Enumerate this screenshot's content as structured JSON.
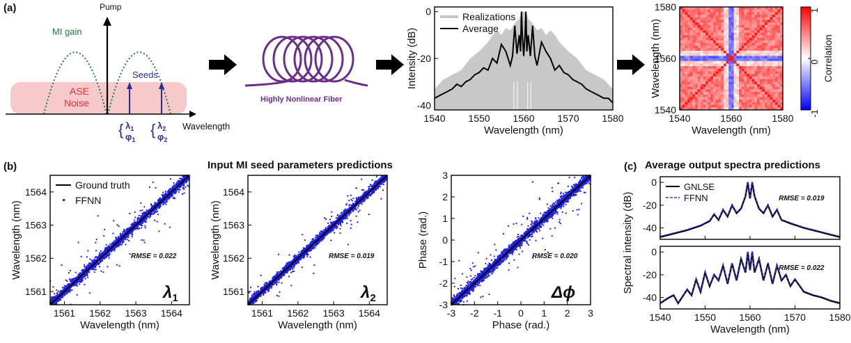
{
  "panel_labels": {
    "a": "(a)",
    "b": "(b)",
    "c": "(c)"
  },
  "schematic": {
    "pump": "Pump",
    "mi_gain": "MI gain",
    "ase_line1": "ASE",
    "ase_line2": "Noise",
    "seeds": "Seeds",
    "wavelength": "Wavelength",
    "lambda1": "λ",
    "lambda1_sub": "1",
    "phi1": "φ",
    "phi1_sub": "1",
    "lambda2": "λ",
    "lambda2_sub": "2",
    "phi2": "φ",
    "phi2_sub": "2",
    "colors": {
      "mi_gain": "#1e7a3a",
      "ase_fill": "#f6c9cb",
      "ase_text": "#e0303a",
      "seed": "#2b2b9a"
    }
  },
  "fiber": {
    "label": "Highly Nonlinear Fiber",
    "color": "#6b2d8c"
  },
  "section_b_title": "Input MI seed parameters predictions",
  "section_c_title": "Average output spectra predictions",
  "chart_data": [
    {
      "id": "spectrum",
      "type": "line",
      "xlabel": "Wavelength (nm)",
      "ylabel": "Intensity (dB)",
      "xlim": [
        1540,
        1580
      ],
      "ylim": [
        -42,
        2
      ],
      "xticks": [
        1540,
        1550,
        1560,
        1570,
        1580
      ],
      "yticks": [
        0,
        -20,
        -40
      ],
      "legend": {
        "placement": "top-left",
        "entries": [
          "Realizations",
          "Average"
        ]
      },
      "series": [
        {
          "name": "Realizations",
          "color": "#c8c8c8",
          "x": [
            1540,
            1542,
            1544,
            1546,
            1548,
            1550,
            1552,
            1553,
            1554,
            1555,
            1556,
            1557,
            1558,
            1559,
            1559.5,
            1560,
            1560.5,
            1561,
            1562,
            1563,
            1564,
            1565,
            1566,
            1567,
            1568,
            1570,
            1572,
            1574,
            1576,
            1578,
            1580
          ],
          "y": [
            -33,
            -29,
            -27,
            -25,
            -20,
            -17,
            -13,
            -10,
            -8,
            -10,
            -7,
            -8,
            -5,
            -3,
            0,
            0,
            0,
            -3,
            -5,
            -8,
            -7,
            -10,
            -8,
            -10,
            -13,
            -17,
            -20,
            -25,
            -27,
            -29,
            -33
          ]
        },
        {
          "name": "Average",
          "color": "#000000",
          "x": [
            1540,
            1541,
            1542,
            1543,
            1544,
            1545,
            1546,
            1547,
            1548,
            1549,
            1550,
            1551,
            1552,
            1553,
            1554,
            1555,
            1556,
            1557,
            1557.5,
            1558,
            1558.5,
            1559,
            1559.3,
            1559.5,
            1559.7,
            1560,
            1560.3,
            1560.5,
            1560.7,
            1561,
            1561.5,
            1562,
            1562.5,
            1563,
            1563.5,
            1564,
            1565,
            1566,
            1567,
            1568,
            1569,
            1570,
            1571,
            1572,
            1573,
            1574,
            1575,
            1576,
            1577,
            1578,
            1579,
            1580
          ],
          "y": [
            -37,
            -36,
            -35,
            -34,
            -33,
            -31,
            -32,
            -30,
            -29,
            -27,
            -26,
            -24,
            -25,
            -20,
            -22,
            -14,
            -17,
            -23,
            -19,
            -6,
            -18,
            -10,
            -17,
            0,
            -10,
            -19,
            -10,
            0,
            -17,
            -10,
            -19,
            -6,
            -19,
            -23,
            -18,
            -13,
            -17,
            -20,
            -25,
            -23,
            -26,
            -27,
            -29,
            -30,
            -31,
            -33,
            -34,
            -35,
            -36,
            -37,
            -37,
            -39
          ]
        }
      ]
    },
    {
      "id": "correlation_map",
      "type": "heatmap",
      "xlabel": "Wavelength (nm)",
      "ylabel": "Wavelength (nm)",
      "xlim": [
        1540,
        1580
      ],
      "ylim": [
        1540,
        1580
      ],
      "xticks": [
        1540,
        1560,
        1580
      ],
      "yticks": [
        1540,
        1560,
        1580
      ],
      "colorbar": {
        "label": "Correlation",
        "ticks": [
          1,
          0,
          -1
        ],
        "range": [
          -1,
          1
        ],
        "low": "#0000ff",
        "mid": "#ffffff",
        "high": "#ff0000"
      }
    },
    {
      "id": "lambda1",
      "type": "scatter",
      "xlabel": "Wavelength (nm)",
      "ylabel": "Wavelength (nm)",
      "xlim": [
        1560.6,
        1564.5
      ],
      "ylim": [
        1560.6,
        1564.5
      ],
      "xticks": [
        1561,
        1562,
        1563,
        1564
      ],
      "yticks": [
        1561,
        1562,
        1563,
        1564
      ],
      "symbol": "λ",
      "symbol_sub": "1",
      "rmse": "RMSE = 0.022",
      "legend": {
        "placement": "top-left",
        "entries": [
          "Ground truth",
          "FFNN"
        ]
      },
      "series": [
        {
          "name": "Ground truth",
          "color": "#000000"
        },
        {
          "name": "FFNN",
          "color": "#1f1fe0"
        }
      ]
    },
    {
      "id": "lambda2",
      "type": "scatter",
      "xlabel": "Wavelength (nm)",
      "ylabel": "Wavelength (nm)",
      "xlim": [
        1560.6,
        1564.5
      ],
      "ylim": [
        1560.6,
        1564.5
      ],
      "xticks": [
        1561,
        1562,
        1563,
        1564
      ],
      "yticks": [
        1561,
        1562,
        1563,
        1564
      ],
      "symbol": "λ",
      "symbol_sub": "2",
      "rmse": "RMSE = 0.019"
    },
    {
      "id": "phase",
      "type": "scatter",
      "xlabel": "Phase (rad.)",
      "ylabel": "Phase (rad.)",
      "xlim": [
        -3,
        3
      ],
      "ylim": [
        -3,
        3
      ],
      "xticks": [
        -3,
        -2,
        -1,
        0,
        1,
        2,
        3
      ],
      "yticks": [
        -3,
        -2,
        -1,
        0,
        1,
        2,
        3
      ],
      "symbol": "Δϕ",
      "rmse": "RMSE = 0.020"
    },
    {
      "id": "avg_spectra",
      "type": "line",
      "xlabel": "Wavelength (nm)",
      "ylabel": "Spectral intensity (dB)",
      "xlim": [
        1540,
        1580
      ],
      "ylim": [
        -50,
        5
      ],
      "xticks": [
        1540,
        1550,
        1560,
        1570,
        1580
      ],
      "yticks": [
        0,
        -20,
        -40
      ],
      "legend": {
        "placement": "top-left",
        "entries": [
          "GNLSE",
          "FFNN"
        ]
      },
      "panels": [
        {
          "rmse": "RMSE = 0.019",
          "x": [
            1540,
            1543,
            1546,
            1549,
            1551,
            1552,
            1553,
            1554,
            1555,
            1556,
            1557,
            1558,
            1559,
            1559.5,
            1560,
            1560.5,
            1561,
            1562,
            1563,
            1564,
            1565,
            1566,
            1567,
            1569,
            1572,
            1575,
            1578,
            1580
          ],
          "y": [
            -48,
            -45,
            -42,
            -38,
            -34,
            -28,
            -33,
            -24,
            -30,
            -20,
            -27,
            -23,
            -12,
            0,
            -14,
            0,
            -12,
            -23,
            -27,
            -20,
            -30,
            -24,
            -33,
            -36,
            -40,
            -43,
            -46,
            -48
          ]
        },
        {
          "rmse": "RMSE = 0.022",
          "x": [
            1540,
            1542,
            1543,
            1544,
            1546,
            1547,
            1548,
            1549,
            1550,
            1551,
            1552,
            1553,
            1554,
            1555,
            1556,
            1557,
            1558,
            1559,
            1559.5,
            1560,
            1560.5,
            1561,
            1562,
            1563,
            1564,
            1565,
            1566,
            1567,
            1568,
            1569,
            1570,
            1572,
            1574,
            1576,
            1578,
            1580
          ],
          "y": [
            -45,
            -40,
            -38,
            -45,
            -33,
            -38,
            -24,
            -35,
            -18,
            -30,
            -20,
            -25,
            -12,
            -28,
            -10,
            -25,
            -6,
            -18,
            0,
            -16,
            0,
            -18,
            -6,
            -25,
            -10,
            -28,
            -12,
            -25,
            -20,
            -30,
            -24,
            -35,
            -38,
            -40,
            -43,
            -45
          ]
        }
      ],
      "series": [
        {
          "name": "GNLSE",
          "color": "#000000"
        },
        {
          "name": "FFNN",
          "color": "#3030e8"
        }
      ]
    }
  ]
}
